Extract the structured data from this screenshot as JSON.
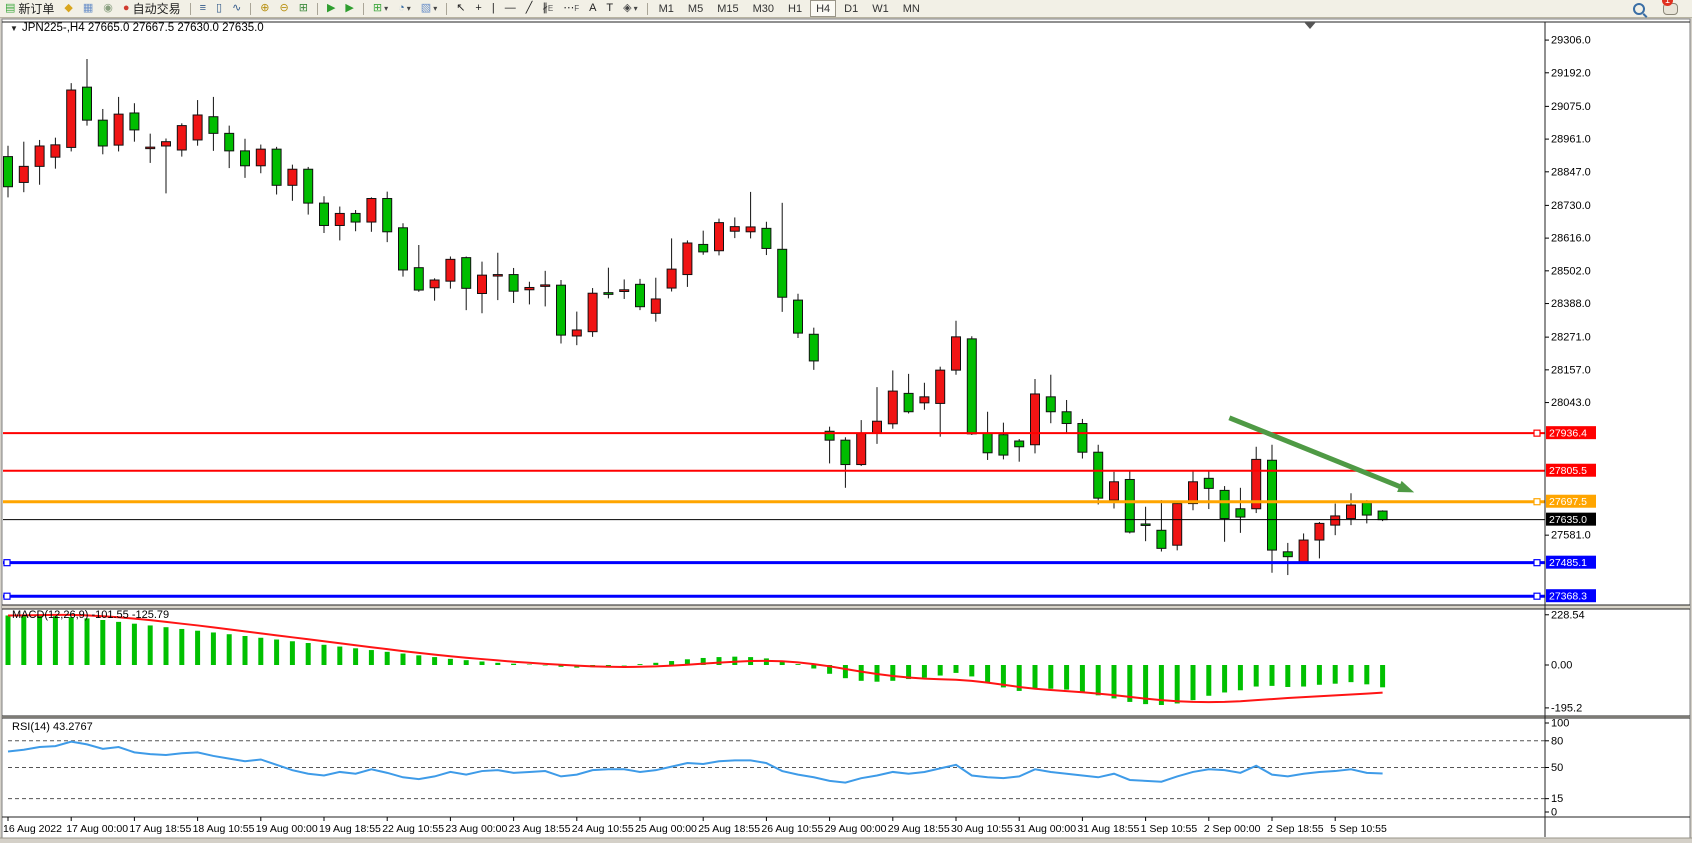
{
  "toolbar": {
    "groups": [
      {
        "items": [
          {
            "name": "new-order-button",
            "icon": "new-order-icon",
            "glyph": "▤",
            "glyph_color": "#3da83d",
            "label": "新订单"
          },
          {
            "name": "market-watch-button",
            "icon": "market-watch-icon",
            "glyph": "◆",
            "glyph_color": "#d9a61e"
          },
          {
            "name": "data-window-button",
            "icon": "data-window-icon",
            "glyph": "▦",
            "glyph_color": "#6a8fc8"
          },
          {
            "name": "navigator-button",
            "icon": "navigator-icon",
            "glyph": "◉",
            "glyph_color": "#8aa080"
          },
          {
            "name": "autotrading-button",
            "icon": "autotrading-icon",
            "glyph": "●",
            "glyph_color": "#d03b2f",
            "label": "自动交易"
          }
        ]
      },
      {
        "items": [
          {
            "name": "bar-chart-button",
            "icon": "bar-chart-icon",
            "glyph": "≡",
            "glyph_color": "#335a8a"
          },
          {
            "name": "candlestick-chart-button",
            "icon": "candlestick-icon",
            "glyph": "▯",
            "glyph_color": "#335a8a"
          },
          {
            "name": "line-chart-button",
            "icon": "line-chart-icon",
            "glyph": "∿",
            "glyph_color": "#335a8a"
          }
        ]
      },
      {
        "items": [
          {
            "name": "zoom-in-button",
            "icon": "zoom-in-icon",
            "glyph": "⊕",
            "glyph_color": "#b89010"
          },
          {
            "name": "zoom-out-button",
            "icon": "zoom-out-icon",
            "glyph": "⊖",
            "glyph_color": "#b89010"
          },
          {
            "name": "tile-windows-button",
            "icon": "tile-windows-icon",
            "glyph": "⊞",
            "glyph_color": "#3d8a3d"
          }
        ]
      },
      {
        "items": [
          {
            "name": "auto-scroll-button",
            "icon": "auto-scroll-icon",
            "glyph": "▶",
            "glyph_color": "#2f9e2f"
          },
          {
            "name": "chart-shift-button",
            "icon": "chart-shift-icon",
            "glyph": "▶",
            "glyph_color": "#2f9e2f"
          }
        ]
      },
      {
        "items": [
          {
            "name": "new-chart-button",
            "icon": "new-chart-icon",
            "glyph": "⊞",
            "glyph_color": "#3da83d",
            "caret": "▾"
          },
          {
            "name": "period-dropdown",
            "icon": "clock-icon",
            "glyph": "◔",
            "glyph_color": "#3a6ea5",
            "caret": "▾"
          },
          {
            "name": "template-dropdown",
            "icon": "template-icon",
            "glyph": "▧",
            "glyph_color": "#6a8fc8",
            "caret": "▾"
          }
        ]
      },
      {
        "items": [
          {
            "name": "cursor-button",
            "icon": "cursor-icon",
            "glyph": "↖",
            "glyph_color": "#222"
          },
          {
            "name": "crosshair-button",
            "icon": "crosshair-icon",
            "glyph": "+",
            "glyph_color": "#222"
          },
          {
            "name": "vertical-line-button",
            "icon": "vertical-line-icon",
            "glyph": "|",
            "glyph_color": "#222"
          },
          {
            "name": "horizontal-line-button",
            "icon": "horizontal-line-icon",
            "glyph": "—",
            "glyph_color": "#222"
          },
          {
            "name": "trendline-button",
            "icon": "trendline-icon",
            "glyph": "╱",
            "glyph_color": "#222"
          },
          {
            "name": "channel-button",
            "icon": "channel-icon",
            "glyph": "∦",
            "glyph_color": "#222",
            "sub": "E"
          },
          {
            "name": "fibonacci-button",
            "icon": "fibonacci-icon",
            "glyph": "⋯",
            "glyph_color": "#222",
            "sub": "F"
          },
          {
            "name": "text-button",
            "icon": "text-icon",
            "glyph": "A",
            "glyph_color": "#222"
          },
          {
            "name": "text-label-button",
            "icon": "text-label-icon",
            "glyph": "T",
            "glyph_color": "#222"
          },
          {
            "name": "shapes-dropdown",
            "icon": "shapes-icon",
            "glyph": "◈",
            "glyph_color": "#444",
            "caret": "▾"
          }
        ]
      }
    ],
    "timeframes": [
      "M1",
      "M5",
      "M15",
      "M30",
      "H1",
      "H4",
      "D1",
      "W1",
      "MN"
    ],
    "active_timeframe": "H4",
    "notification_count": "1"
  },
  "chart": {
    "title_marker": "▼",
    "symbol_title": "JPN225-,H4",
    "ohlc_title": "27665.0 27667.5 27630.0 27635.0",
    "open": 27665.0,
    "high": 27667.5,
    "low": 27630.0,
    "close": 27635.0,
    "price_axis_ticks": [
      29306.0,
      29192.0,
      29075.0,
      28961.0,
      28847.0,
      28730.0,
      28616.0,
      28502.0,
      28388.0,
      28271.0,
      28157.0,
      28043.0,
      27581.0
    ],
    "hlines": [
      {
        "name": "resistance-line-1",
        "price": 27936.4,
        "color": "#ff0000",
        "width": 2,
        "handles": [
          "right"
        ]
      },
      {
        "name": "resistance-line-2",
        "price": 27805.5,
        "color": "#ff0000",
        "width": 2,
        "handles": []
      },
      {
        "name": "pivot-line",
        "price": 27697.5,
        "color": "#ffa500",
        "width": 3,
        "handles": [
          "right"
        ]
      },
      {
        "name": "current-price-line",
        "price": 27635.0,
        "color": "#000000",
        "width": 1,
        "handles": []
      },
      {
        "name": "support-line-1",
        "price": 27485.1,
        "color": "#0000ff",
        "width": 3,
        "handles": [
          "left",
          "right"
        ]
      },
      {
        "name": "support-line-2",
        "price": 27368.3,
        "color": "#0000ff",
        "width": 3,
        "handles": [
          "left",
          "right"
        ]
      }
    ],
    "arrow": {
      "from_index": 77.3,
      "from_price": 27990,
      "to_index": 89.0,
      "to_price": 27730,
      "color": "#4f9a45"
    },
    "colors": {
      "up": "#f01414",
      "down": "#00bd00",
      "wick": "#111111",
      "macd_hist": "#00c000",
      "macd_signal": "#ff1414",
      "rsi_line": "#3e9be8",
      "axis_text": "#000000",
      "pane_bg": "#ffffff"
    },
    "macd_label": "MACD(12,26,9) -101.55 -125.79",
    "rsi_label": "RSI(14) 43.2767",
    "macd_axis": [
      {
        "v": 228.54,
        "label": "228.54"
      },
      {
        "v": 0,
        "label": "0.00"
      },
      {
        "v": -195.2,
        "label": "-195.2"
      }
    ],
    "rsi_axis": [
      {
        "v": 100,
        "label": "100"
      },
      {
        "v": 80,
        "label": "80"
      },
      {
        "v": 50,
        "label": "50"
      },
      {
        "v": 15,
        "label": "15"
      },
      {
        "v": 0,
        "label": "0"
      }
    ],
    "rsi_dashed_levels": [
      80,
      50,
      15
    ],
    "time_labels": [
      "16 Aug 2022",
      "17 Aug 00:00",
      "17 Aug 18:55",
      "18 Aug 10:55",
      "19 Aug 00:00",
      "19 Aug 18:55",
      "22 Aug 10:55",
      "23 Aug 00:00",
      "23 Aug 18:55",
      "24 Aug 10:55",
      "25 Aug 00:00",
      "25 Aug 18:55",
      "26 Aug 10:55",
      "29 Aug 00:00",
      "29 Aug 18:55",
      "30 Aug 10:55",
      "31 Aug 00:00",
      "31 Aug 18:55",
      "1 Sep 10:55",
      "2 Sep 00:00",
      "2 Sep 18:55",
      "5 Sep 10:55"
    ]
  },
  "chart_data": {
    "type": "candlestick",
    "symbol": "JPN225-,H4",
    "price_range": [
      27337,
      29369
    ],
    "candles": [
      [
        28900,
        28938,
        28758,
        28795
      ],
      [
        28810,
        28952,
        28776,
        28866
      ],
      [
        28866,
        28958,
        28802,
        28937
      ],
      [
        28898,
        28966,
        28858,
        28941
      ],
      [
        28932,
        29156,
        28918,
        29132
      ],
      [
        29142,
        29240,
        29008,
        29027
      ],
      [
        29027,
        29066,
        28908,
        28937
      ],
      [
        28940,
        29108,
        28918,
        29048
      ],
      [
        29052,
        29086,
        28952,
        28993
      ],
      [
        28930,
        28980,
        28878,
        28933
      ],
      [
        28937,
        28963,
        28772,
        28952
      ],
      [
        28923,
        29016,
        28900,
        29008
      ],
      [
        28958,
        29097,
        28938,
        29045
      ],
      [
        29039,
        29108,
        28920,
        28981
      ],
      [
        28981,
        29008,
        28860,
        28920
      ],
      [
        28920,
        28962,
        28826,
        28868
      ],
      [
        28868,
        28942,
        28842,
        28926
      ],
      [
        28926,
        28934,
        28768,
        28800
      ],
      [
        28800,
        28872,
        28746,
        28856
      ],
      [
        28856,
        28864,
        28698,
        28738
      ],
      [
        28738,
        28762,
        28634,
        28660
      ],
      [
        28660,
        28726,
        28608,
        28702
      ],
      [
        28702,
        28714,
        28640,
        28672
      ],
      [
        28672,
        28758,
        28638,
        28754
      ],
      [
        28754,
        28778,
        28602,
        28638
      ],
      [
        28652,
        28668,
        28482,
        28505
      ],
      [
        28513,
        28592,
        28429,
        28435
      ],
      [
        28443,
        28476,
        28398,
        28470
      ],
      [
        28466,
        28552,
        28440,
        28542
      ],
      [
        28548,
        28552,
        28365,
        28441
      ],
      [
        28423,
        28534,
        28354,
        28487
      ],
      [
        28486,
        28565,
        28400,
        28489
      ],
      [
        28489,
        28512,
        28390,
        28431
      ],
      [
        28436,
        28464,
        28385,
        28444
      ],
      [
        28452,
        28502,
        28378,
        28453
      ],
      [
        28452,
        28470,
        28249,
        28278
      ],
      [
        28275,
        28360,
        28243,
        28296
      ],
      [
        28290,
        28442,
        28272,
        28424
      ],
      [
        28426,
        28513,
        28406,
        28420
      ],
      [
        28430,
        28472,
        28404,
        28436
      ],
      [
        28455,
        28474,
        28365,
        28377
      ],
      [
        28354,
        28478,
        28325,
        28404
      ],
      [
        28442,
        28615,
        28430,
        28508
      ],
      [
        28489,
        28608,
        28446,
        28599
      ],
      [
        28594,
        28642,
        28558,
        28568
      ],
      [
        28572,
        28684,
        28556,
        28670
      ],
      [
        28640,
        28688,
        28616,
        28656
      ],
      [
        28638,
        28777,
        28615,
        28655
      ],
      [
        28650,
        28673,
        28557,
        28580
      ],
      [
        28577,
        28739,
        28359,
        28410
      ],
      [
        28400,
        28422,
        28268,
        28285
      ],
      [
        28281,
        28304,
        28157,
        28188
      ],
      [
        27943,
        27959,
        27831,
        27912
      ],
      [
        27912,
        27922,
        27746,
        27827
      ],
      [
        27827,
        27982,
        27822,
        27937
      ],
      [
        27937,
        28097,
        27899,
        27978
      ],
      [
        27969,
        28155,
        27952,
        28083
      ],
      [
        28075,
        28143,
        28005,
        28011
      ],
      [
        28042,
        28112,
        28018,
        28063
      ],
      [
        28040,
        28168,
        27924,
        28156
      ],
      [
        28156,
        28328,
        28140,
        28272
      ],
      [
        28265,
        28274,
        27930,
        27934
      ],
      [
        27937,
        28011,
        27843,
        27868
      ],
      [
        27931,
        27973,
        27845,
        27860
      ],
      [
        27909,
        27916,
        27837,
        27889
      ],
      [
        27896,
        28125,
        27866,
        28073
      ],
      [
        28063,
        28140,
        27971,
        28011
      ],
      [
        28011,
        28052,
        27938,
        27970
      ],
      [
        27970,
        27986,
        27848,
        27870
      ],
      [
        27870,
        27896,
        27688,
        27710
      ],
      [
        27703,
        27802,
        27674,
        27767
      ],
      [
        27775,
        27808,
        27587,
        27592
      ],
      [
        27620,
        27680,
        27560,
        27616
      ],
      [
        27598,
        27703,
        27524,
        27535
      ],
      [
        27546,
        27700,
        27528,
        27691
      ],
      [
        27691,
        27808,
        27668,
        27767
      ],
      [
        27779,
        27806,
        27672,
        27744
      ],
      [
        27737,
        27752,
        27558,
        27639
      ],
      [
        27673,
        27746,
        27589,
        27644
      ],
      [
        27673,
        27889,
        27658,
        27845
      ],
      [
        27842,
        27896,
        27450,
        27529
      ],
      [
        27523,
        27554,
        27442,
        27506
      ],
      [
        27488,
        27587,
        27483,
        27564
      ],
      [
        27564,
        27627,
        27500,
        27622
      ],
      [
        27616,
        27691,
        27581,
        27648
      ],
      [
        27639,
        27727,
        27616,
        27686
      ],
      [
        27694,
        27703,
        27622,
        27651
      ],
      [
        27665,
        27667.5,
        27630,
        27635
      ]
    ],
    "macd": {
      "params": "12,26,9",
      "value_main": -101.55,
      "value_signal": -125.79,
      "scale_max": 228.54,
      "scale_min": -195.2,
      "histogram": [
        225,
        228,
        226,
        222,
        218,
        212,
        205,
        196,
        188,
        180,
        172,
        164,
        156,
        148,
        140,
        132,
        124,
        116,
        108,
        100,
        92,
        84,
        76,
        68,
        60,
        52,
        44,
        36,
        28,
        22,
        16,
        10,
        6,
        2,
        -2,
        -8,
        -12,
        -10,
        -6,
        -2,
        4,
        10,
        18,
        26,
        32,
        36,
        38,
        36,
        30,
        20,
        4,
        -16,
        -40,
        -60,
        -72,
        -76,
        -72,
        -64,
        -58,
        -48,
        -36,
        -52,
        -78,
        -102,
        -118,
        -110,
        -108,
        -112,
        -124,
        -138,
        -152,
        -168,
        -178,
        -182,
        -175,
        -160,
        -140,
        -125,
        -115,
        -98,
        -95,
        -100,
        -98,
        -90,
        -85,
        -78,
        -88,
        -101.55
      ],
      "signal": [
        225,
        226,
        227,
        228,
        228,
        226,
        222,
        217,
        211,
        204,
        196,
        188,
        180,
        171,
        162,
        153,
        144,
        135,
        126,
        117,
        108,
        99,
        90,
        81,
        72,
        63,
        55,
        47,
        40,
        33,
        27,
        21,
        15,
        10,
        5,
        1,
        -3,
        -6,
        -8,
        -9,
        -8,
        -6,
        -3,
        1,
        6,
        11,
        15,
        18,
        19,
        17,
        12,
        4,
        -6,
        -18,
        -30,
        -41,
        -50,
        -57,
        -62,
        -65,
        -67,
        -72,
        -80,
        -90,
        -100,
        -108,
        -114,
        -119,
        -124,
        -130,
        -137,
        -145,
        -153,
        -160,
        -165,
        -168,
        -169,
        -168,
        -165,
        -160,
        -155,
        -150,
        -146,
        -142,
        -138,
        -134,
        -130,
        -125.79
      ]
    },
    "rsi": {
      "period": 14,
      "value": 43.2767,
      "values": [
        68,
        70,
        73,
        74,
        79,
        76,
        71,
        73,
        67,
        65,
        64,
        66,
        67,
        63,
        60,
        57,
        59,
        53,
        47,
        43,
        41,
        45,
        43,
        48,
        44,
        39,
        37,
        40,
        45,
        42,
        46,
        47,
        44,
        45,
        46,
        40,
        42,
        47,
        48,
        48,
        45,
        47,
        51,
        55,
        54,
        57,
        58,
        58,
        55,
        46,
        42,
        39,
        35,
        33,
        38,
        41,
        45,
        43,
        45,
        49,
        53,
        41,
        39,
        38,
        40,
        48,
        45,
        43,
        41,
        39,
        43,
        36,
        35,
        34,
        40,
        45,
        48,
        47,
        44,
        52,
        42,
        40,
        43,
        45,
        46,
        48,
        44,
        43.28
      ]
    }
  }
}
